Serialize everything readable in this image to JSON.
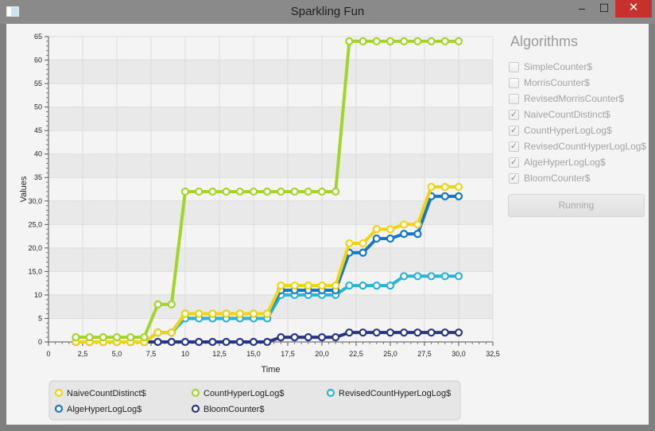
{
  "window": {
    "title": "Sparkling Fun",
    "minimize": "–",
    "maximize": "☐",
    "close": "✕"
  },
  "panel": {
    "title": "Algorithms",
    "items": [
      {
        "label": "SimpleCounter$",
        "checked": false
      },
      {
        "label": "MorrisCounter$",
        "checked": false
      },
      {
        "label": "RevisedMorrisCounter$",
        "checked": false
      },
      {
        "label": "NaiveCountDistinct$",
        "checked": true
      },
      {
        "label": "CountHyperLogLog$",
        "checked": true
      },
      {
        "label": "RevisedCountHyperLogLog$",
        "checked": true
      },
      {
        "label": "AlgeHyperLogLog$",
        "checked": true
      },
      {
        "label": "BloomCounter$",
        "checked": true
      }
    ],
    "run_label": "Running"
  },
  "chart_data": {
    "type": "line",
    "xlabel": "Time",
    "ylabel": "Values",
    "xlim": [
      0,
      32.5
    ],
    "ylim": [
      0,
      65
    ],
    "x_ticks": [
      "0",
      "2,5",
      "5,0",
      "7,5",
      "10",
      "12,5",
      "15,0",
      "17,5",
      "20,0",
      "22,5",
      "25,0",
      "27,5",
      "30,0",
      "32,5"
    ],
    "y_ticks": [
      "0",
      "5",
      "10",
      "15,0",
      "20,0",
      "25,0",
      "30,0",
      "35",
      "40",
      "45",
      "50",
      "55",
      "60",
      "65"
    ],
    "grid": true,
    "legend_position": "bottom-left",
    "series": [
      {
        "name": "NaiveCountDistinct$",
        "color": "#f2d30f",
        "x": [
          2,
          3,
          4,
          5,
          6,
          7,
          8,
          9,
          10,
          11,
          12,
          13,
          14,
          15,
          16,
          17,
          18,
          19,
          20,
          21,
          22,
          23,
          24,
          25,
          26,
          27,
          28,
          29,
          30
        ],
        "y": [
          0,
          0,
          0,
          0,
          0,
          0,
          2,
          2,
          6,
          6,
          6,
          6,
          6,
          6,
          6,
          12,
          12,
          12,
          12,
          12,
          21,
          21,
          24,
          24,
          25,
          25,
          33,
          33,
          33
        ]
      },
      {
        "name": "CountHyperLogLog$",
        "color": "#a2d42a",
        "x": [
          2,
          3,
          4,
          5,
          6,
          7,
          8,
          9,
          10,
          11,
          12,
          13,
          14,
          15,
          16,
          17,
          18,
          19,
          20,
          21,
          22,
          23,
          24,
          25,
          26,
          27,
          28,
          29,
          30
        ],
        "y": [
          1,
          1,
          1,
          1,
          1,
          1,
          8,
          8,
          32,
          32,
          32,
          32,
          32,
          32,
          32,
          32,
          32,
          32,
          32,
          32,
          64,
          64,
          64,
          64,
          64,
          64,
          64,
          64,
          64
        ]
      },
      {
        "name": "RevisedCountHyperLogLog$",
        "color": "#2bb3d3",
        "x": [
          2,
          3,
          4,
          5,
          6,
          7,
          8,
          9,
          10,
          11,
          12,
          13,
          14,
          15,
          16,
          17,
          18,
          19,
          20,
          21,
          22,
          23,
          24,
          25,
          26,
          27,
          28,
          29,
          30
        ],
        "y": [
          0,
          0,
          0,
          0,
          0,
          0,
          2,
          2,
          5,
          5,
          5,
          5,
          5,
          5,
          5,
          10,
          10,
          10,
          10,
          10,
          12,
          12,
          12,
          12,
          14,
          14,
          14,
          14,
          14
        ]
      },
      {
        "name": "AlgeHyperLogLog$",
        "color": "#1477cc",
        "x": [
          2,
          3,
          4,
          5,
          6,
          7,
          8,
          9,
          10,
          11,
          12,
          13,
          14,
          15,
          16,
          17,
          18,
          19,
          20,
          21,
          22,
          23,
          24,
          25,
          26,
          27,
          28,
          29,
          30
        ],
        "y": [
          0,
          0,
          0,
          0,
          0,
          0,
          2,
          2,
          6,
          6,
          6,
          6,
          6,
          6,
          6,
          11,
          11,
          11,
          11,
          11,
          19,
          19,
          22,
          22,
          23,
          23,
          31,
          31,
          31
        ]
      },
      {
        "name": "BloomCounter$",
        "color": "#283583",
        "x": [
          2,
          3,
          4,
          5,
          6,
          7,
          8,
          9,
          10,
          11,
          12,
          13,
          14,
          15,
          16,
          17,
          18,
          19,
          20,
          21,
          22,
          23,
          24,
          25,
          26,
          27,
          28,
          29,
          30
        ],
        "y": [
          0,
          0,
          0,
          0,
          0,
          0,
          0,
          0,
          0,
          0,
          0,
          0,
          0,
          0,
          0,
          1,
          1,
          1,
          1,
          1,
          2,
          2,
          2,
          2,
          2,
          2,
          2,
          2,
          2
        ]
      }
    ]
  }
}
